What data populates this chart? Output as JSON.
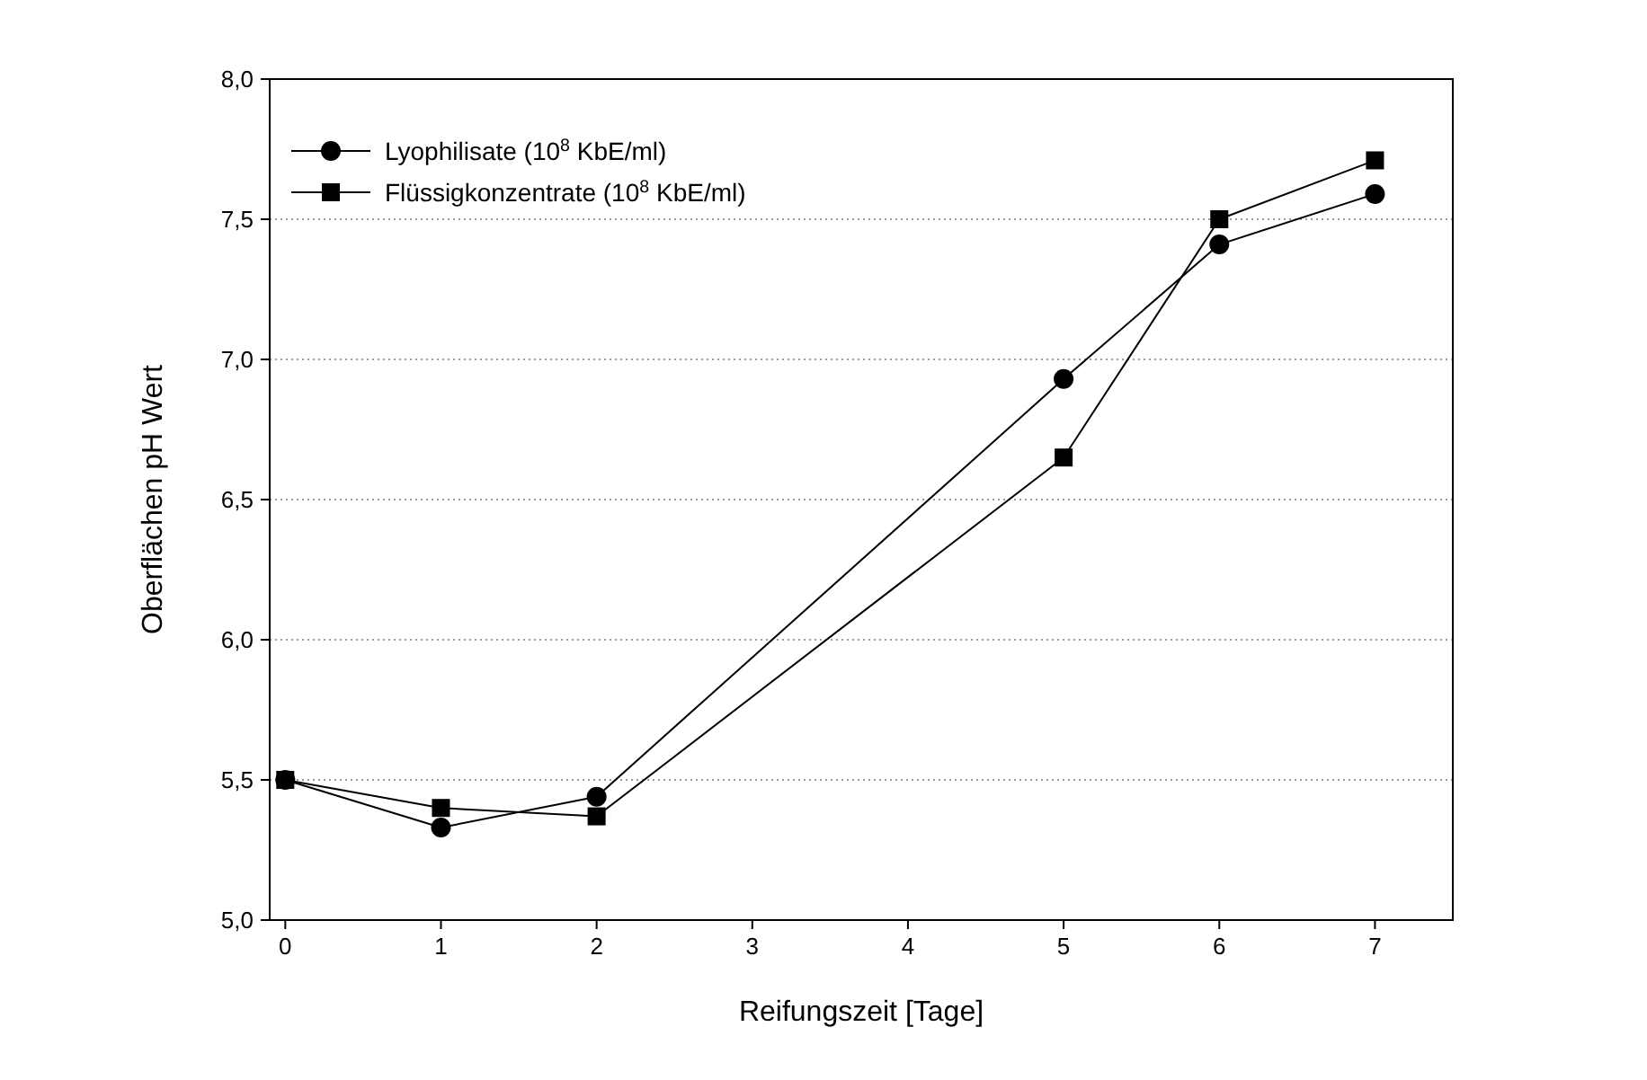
{
  "chart_data": {
    "type": "line",
    "xlabel": "Reifungszeit [Tage]",
    "ylabel": "Oberflächen pH Wert",
    "x": [
      0,
      1,
      2,
      5,
      6,
      7
    ],
    "series": [
      {
        "name": "Lyophilisate (10$^{8}$ KbE/ml)",
        "color": "#000000",
        "marker": "circle",
        "values": [
          5.5,
          5.33,
          5.44,
          6.93,
          7.41,
          7.59
        ]
      },
      {
        "name": "Flüssigkonzentrate (10$^{8}$ KbE/ml)",
        "color": "#000000",
        "marker": "square",
        "values": [
          5.5,
          5.4,
          5.37,
          6.65,
          7.5,
          7.71
        ]
      }
    ],
    "xlim": [
      -0.1,
      7.5
    ],
    "xticks": [
      0,
      1,
      2,
      3,
      4,
      5,
      6,
      7
    ],
    "ylim": [
      5,
      8
    ],
    "yticks": [
      {
        "value": 5,
        "label": "5,0"
      },
      {
        "value": 5.5,
        "label": "5,5"
      },
      {
        "value": 6,
        "label": "6,0"
      },
      {
        "value": 6.5,
        "label": "6,5"
      },
      {
        "value": 7,
        "label": "7,0"
      },
      {
        "value": 7.5,
        "label": "7,5"
      },
      {
        "value": 8,
        "label": "8,0"
      }
    ],
    "grid": "y",
    "legend": "top left",
    "line_style": "solid"
  }
}
